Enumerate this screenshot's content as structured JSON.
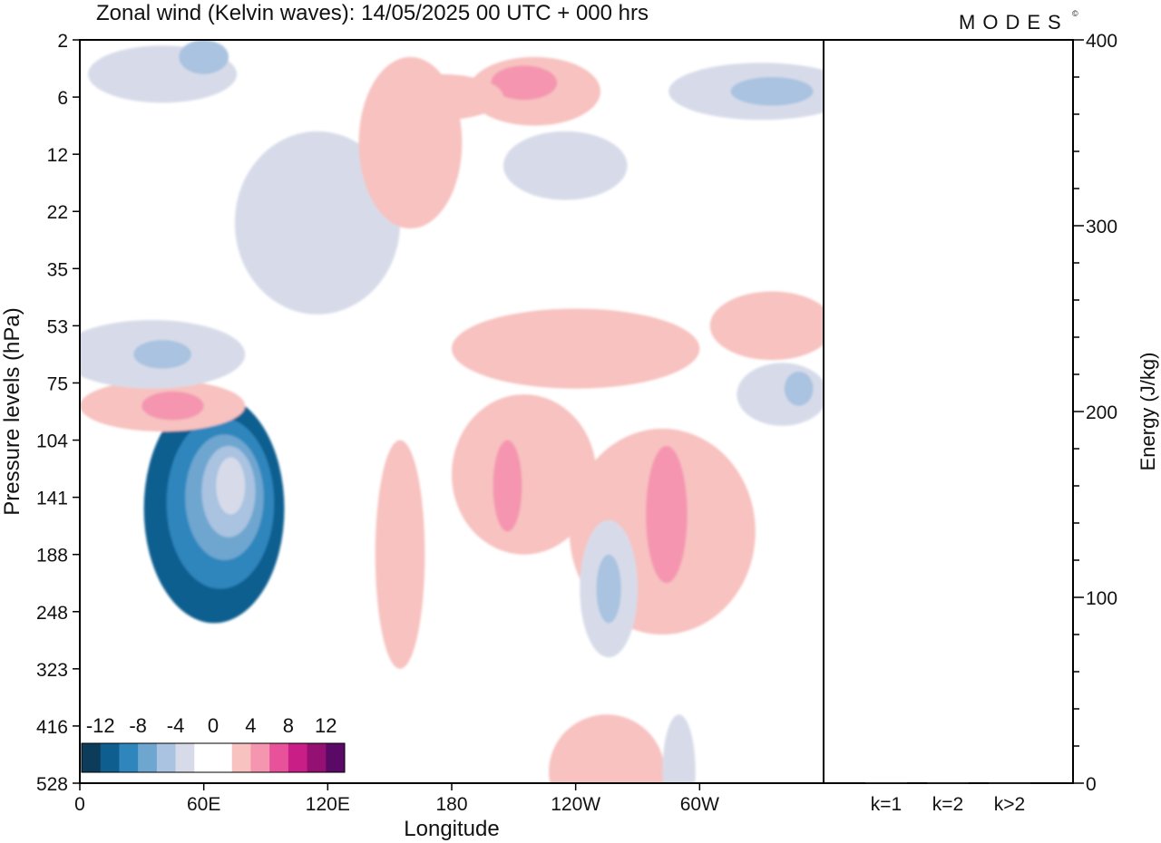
{
  "header": {
    "title": "Zonal wind (Kelvin waves):  14/05/2025  00 UTC  + 000 hrs",
    "brand": "MODES",
    "brand_mark": "©"
  },
  "chart_data": [
    {
      "type": "heatmap",
      "title": "Zonal wind (Kelvin waves):  14/05/2025  00 UTC  + 000 hrs",
      "xlabel": "Longitude",
      "ylabel": "Pressure levels (hPa)",
      "x_ticks": [
        {
          "deg": 0,
          "label": "0"
        },
        {
          "deg": 60,
          "label": "60E"
        },
        {
          "deg": 120,
          "label": "120E"
        },
        {
          "deg": 180,
          "label": "180"
        },
        {
          "deg": 240,
          "label": "120W"
        },
        {
          "deg": 300,
          "label": "60W"
        }
      ],
      "xlim": [
        0,
        360
      ],
      "y_levels": [
        "2",
        "6",
        "12",
        "22",
        "35",
        "53",
        "75",
        "104",
        "141",
        "188",
        "248",
        "323",
        "416",
        "528"
      ],
      "colorbar": {
        "tick_labels": [
          "-12",
          "-8",
          "-4",
          "0",
          "4",
          "8",
          "12"
        ],
        "colors": [
          "#0d3b5a",
          "#0e5f90",
          "#2f86bd",
          "#6ea6d0",
          "#a9c3e0",
          "#d7dbe9",
          "#ffffff",
          "#ffffff",
          "#f7c2c0",
          "#f595b0",
          "#e8529a",
          "#c91e86",
          "#941072",
          "#5a0a66"
        ]
      },
      "features": [
        {
          "sign": "negative",
          "level": 5,
          "lon": 65,
          "p_index": 8.2,
          "lon_radius": 34,
          "lev_radius": 2.0
        },
        {
          "sign": "negative",
          "level": 4,
          "lon": 68,
          "p_index": 8.1,
          "lon_radius": 26,
          "lev_radius": 1.5
        },
        {
          "sign": "negative",
          "level": 3,
          "lon": 70,
          "p_index": 8.0,
          "lon_radius": 19,
          "lev_radius": 1.1
        },
        {
          "sign": "negative",
          "level": 2,
          "lon": 72,
          "p_index": 7.9,
          "lon_radius": 13,
          "lev_radius": 0.8
        },
        {
          "sign": "negative",
          "level": 1,
          "lon": 73,
          "p_index": 7.8,
          "lon_radius": 7,
          "lev_radius": 0.5
        },
        {
          "sign": "positive",
          "level": 1,
          "lon": 40,
          "p_index": 6.4,
          "lon_radius": 40,
          "lev_radius": 0.45
        },
        {
          "sign": "positive",
          "level": 2,
          "lon": 45,
          "p_index": 6.4,
          "lon_radius": 15,
          "lev_radius": 0.25
        },
        {
          "sign": "positive",
          "level": 1,
          "lon": 215,
          "p_index": 7.6,
          "lon_radius": 35,
          "lev_radius": 1.4
        },
        {
          "sign": "positive",
          "level": 2,
          "lon": 207,
          "p_index": 7.8,
          "lon_radius": 7,
          "lev_radius": 0.8
        },
        {
          "sign": "positive",
          "level": 1,
          "lon": 282,
          "p_index": 8.6,
          "lon_radius": 45,
          "lev_radius": 1.8
        },
        {
          "sign": "positive",
          "level": 2,
          "lon": 284,
          "p_index": 8.3,
          "lon_radius": 10,
          "lev_radius": 1.2
        },
        {
          "sign": "negative",
          "level": 1,
          "lon": 256,
          "p_index": 9.6,
          "lon_radius": 14,
          "lev_radius": 1.2
        },
        {
          "sign": "negative",
          "level": 2,
          "lon": 256,
          "p_index": 9.6,
          "lon_radius": 6,
          "lev_radius": 0.6
        },
        {
          "sign": "positive",
          "level": 1,
          "lon": 240,
          "p_index": 5.4,
          "lon_radius": 60,
          "lev_radius": 0.7
        },
        {
          "sign": "positive",
          "level": 1,
          "lon": 220,
          "p_index": 0.9,
          "lon_radius": 32,
          "lev_radius": 0.6
        },
        {
          "sign": "positive",
          "level": 2,
          "lon": 215,
          "p_index": 0.75,
          "lon_radius": 16,
          "lev_radius": 0.3
        },
        {
          "sign": "negative",
          "level": 1,
          "lon": 330,
          "p_index": 0.9,
          "lon_radius": 45,
          "lev_radius": 0.5
        },
        {
          "sign": "negative",
          "level": 2,
          "lon": 335,
          "p_index": 0.9,
          "lon_radius": 20,
          "lev_radius": 0.25
        },
        {
          "sign": "negative",
          "level": 1,
          "lon": 40,
          "p_index": 0.6,
          "lon_radius": 36,
          "lev_radius": 0.5
        },
        {
          "sign": "negative",
          "level": 2,
          "lon": 60,
          "p_index": 0.3,
          "lon_radius": 12,
          "lev_radius": 0.3
        },
        {
          "sign": "negative",
          "level": 1,
          "lon": 35,
          "p_index": 5.5,
          "lon_radius": 45,
          "lev_radius": 0.6
        },
        {
          "sign": "negative",
          "level": 2,
          "lon": 40,
          "p_index": 5.5,
          "lon_radius": 14,
          "lev_radius": 0.25
        },
        {
          "sign": "positive",
          "level": 1,
          "lon": 335,
          "p_index": 5.0,
          "lon_radius": 30,
          "lev_radius": 0.6
        },
        {
          "sign": "negative",
          "level": 1,
          "lon": 340,
          "p_index": 6.2,
          "lon_radius": 22,
          "lev_radius": 0.55
        },
        {
          "sign": "negative",
          "level": 2,
          "lon": 348,
          "p_index": 6.1,
          "lon_radius": 7,
          "lev_radius": 0.3
        },
        {
          "sign": "positive",
          "level": 1,
          "lon": 255,
          "p_index": 12.8,
          "lon_radius": 28,
          "lev_radius": 1.0
        },
        {
          "sign": "negative",
          "level": 1,
          "lon": 290,
          "p_index": 12.8,
          "lon_radius": 8,
          "lev_radius": 1.0
        },
        {
          "sign": "positive",
          "level": 1,
          "lon": 155,
          "p_index": 9.0,
          "lon_radius": 12,
          "lev_radius": 2.0
        },
        {
          "sign": "negative",
          "level": 1,
          "lon": 115,
          "p_index": 3.2,
          "lon_radius": 40,
          "lev_radius": 1.6
        },
        {
          "sign": "negative",
          "level": 1,
          "lon": 235,
          "p_index": 2.2,
          "lon_radius": 30,
          "lev_radius": 0.6
        },
        {
          "sign": "positive",
          "level": 1,
          "lon": 160,
          "p_index": 1.8,
          "lon_radius": 25,
          "lev_radius": 1.5
        },
        {
          "sign": "positive",
          "level": 1,
          "lon": 175,
          "p_index": 1.0,
          "lon_radius": 30,
          "lev_radius": 0.4
        }
      ]
    },
    {
      "type": "bar",
      "categories": [
        "k=1",
        "k=2",
        "k>2"
      ],
      "values": [
        0.5,
        0.4,
        0.3
      ],
      "ylabel": "Energy (J/kg)",
      "ylim": [
        0,
        400
      ],
      "y_ticks": [
        "0",
        "100",
        "200",
        "300",
        "400"
      ]
    }
  ]
}
